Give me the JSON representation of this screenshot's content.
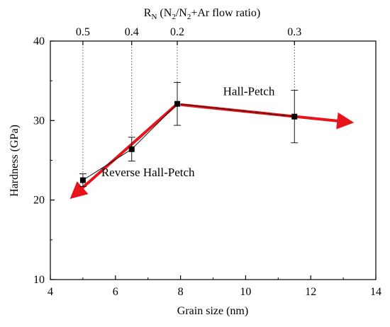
{
  "chart_data": {
    "type": "scatter",
    "xlabel": "Grain size (nm)",
    "ylabel": "Hardness (GPa)",
    "xlim": [
      4,
      14
    ],
    "ylim": [
      10,
      40
    ],
    "x_ticks": [
      "4",
      "6",
      "8",
      "10",
      "12",
      "14"
    ],
    "y_ticks": [
      "10",
      "20",
      "30",
      "40"
    ],
    "top_axis": {
      "label_main": "R",
      "label_sub": "N",
      "label_rest_a": " (N",
      "label_sub2": "2",
      "label_rest_b": "/N",
      "label_sub3": "2",
      "label_rest_c": "+Ar flow ratio)",
      "ticks": [
        {
          "x": 5.0,
          "label": "0.5"
        },
        {
          "x": 6.5,
          "label": "0.4"
        },
        {
          "x": 7.9,
          "label": "0.2"
        },
        {
          "x": 11.5,
          "label": "0.3"
        }
      ]
    },
    "series": [
      {
        "points": [
          {
            "x": 5.0,
            "y": 22.5,
            "err": 0.8
          },
          {
            "x": 6.5,
            "y": 26.4,
            "err": 1.5
          },
          {
            "x": 7.9,
            "y": 32.1,
            "err": 2.7
          },
          {
            "x": 11.5,
            "y": 30.5,
            "err": 3.3
          }
        ]
      }
    ],
    "arrows": [
      {
        "from": [
          7.9,
          32.1
        ],
        "to": [
          4.7,
          20.5
        ],
        "color": "#e8141b"
      },
      {
        "from": [
          8.0,
          32.0
        ],
        "to": [
          13.2,
          29.8
        ],
        "color": "#e8141b"
      }
    ],
    "annotations": [
      {
        "text": "Hall-Petch",
        "x": 10.1,
        "y": 33.2
      },
      {
        "text": "Reverse Hall-Petch",
        "x": 7.0,
        "y": 23.0
      }
    ]
  }
}
